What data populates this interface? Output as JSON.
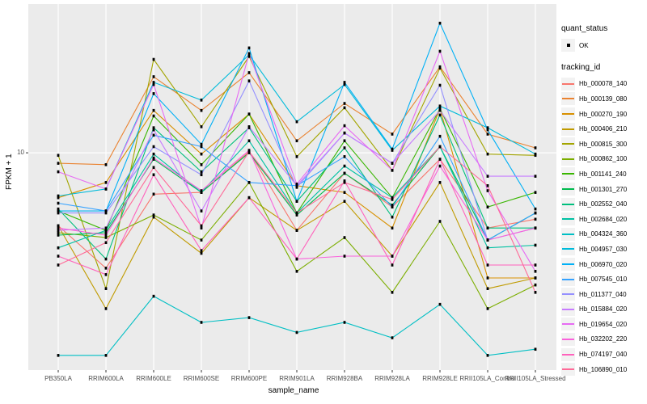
{
  "chart_data": {
    "type": "line",
    "title": "",
    "xlabel": "sample_name",
    "ylabel": "FPKM + 1",
    "yscale": "log10",
    "ytick_label": "10",
    "yticks": [
      10
    ],
    "ylim": [
      1.78,
      32.6
    ],
    "grid": "on",
    "legend_position": "right",
    "panel_bg": "#EBEBEB",
    "grid_color": "#FFFFFF",
    "point_color": "#000000",
    "categories": [
      "PB350LA",
      "RRIM600LA",
      "RRIM600LE",
      "RRIM600SE",
      "RRIM600PE",
      "RRIM901LA",
      "RRIM928BA",
      "RRIM928LA",
      "RRIM928LE",
      "RRII105LA_Control",
      "RRII105LA_Stressed"
    ],
    "series": [
      {
        "name": "Hb_000078_140",
        "color": "#F8766D",
        "values": [
          5.6,
          4.0,
          7.2,
          7.3,
          10.1,
          5.4,
          8.5,
          6.5,
          9.5,
          5.5,
          5.9
        ]
      },
      {
        "name": "Hb_000139_080",
        "color": "#EA8331",
        "values": [
          9.2,
          9.1,
          18.3,
          14.0,
          18.9,
          11.0,
          14.8,
          11.6,
          19.8,
          11.6,
          10.4
        ]
      },
      {
        "name": "Hb_000270_190",
        "color": "#D89000",
        "values": [
          7.0,
          7.9,
          14.0,
          9.9,
          13.6,
          7.7,
          7.3,
          5.5,
          14.2,
          3.7,
          3.7
        ]
      },
      {
        "name": "Hb_000406_210",
        "color": "#C09B00",
        "values": [
          5.6,
          2.9,
          6.0,
          4.5,
          7.0,
          5.4,
          6.8,
          4.4,
          7.9,
          3.4,
          3.7
        ]
      },
      {
        "name": "Hb_000815_300",
        "color": "#A3A500",
        "values": [
          9.8,
          3.4,
          21.0,
          12.3,
          21.5,
          9.7,
          14.3,
          8.7,
          19.6,
          9.9,
          9.8
        ]
      },
      {
        "name": "Hb_000862_100",
        "color": "#7CAE00",
        "values": [
          5.3,
          5.1,
          6.1,
          5.0,
          7.9,
          3.9,
          5.1,
          3.3,
          5.8,
          2.9,
          3.5
        ]
      },
      {
        "name": "Hb_001141_240",
        "color": "#39B600",
        "values": [
          6.3,
          5.4,
          13.4,
          9.1,
          13.6,
          6.2,
          11.0,
          7.0,
          14.2,
          6.5,
          7.3
        ]
      },
      {
        "name": "Hb_001301_270",
        "color": "#00BB4E",
        "values": [
          5.2,
          5.3,
          9.5,
          7.3,
          10.0,
          6.1,
          8.5,
          6.6,
          10.5,
          5.0,
          6.2
        ]
      },
      {
        "name": "Hb_002552_040",
        "color": "#00BF7D",
        "values": [
          6.4,
          4.3,
          12.2,
          8.6,
          12.2,
          6.8,
          10.4,
          6.0,
          13.5,
          5.5,
          5.5
        ]
      },
      {
        "name": "Hb_002684_020",
        "color": "#00C1A3",
        "values": [
          4.7,
          5.4,
          9.9,
          7.3,
          11.0,
          6.2,
          9.0,
          7.0,
          10.5,
          4.7,
          4.8
        ]
      },
      {
        "name": "Hb_004324_360",
        "color": "#00BFC4",
        "values": [
          2.0,
          2.0,
          3.2,
          2.6,
          2.7,
          2.4,
          2.6,
          2.3,
          3.0,
          2.0,
          2.1
        ]
      },
      {
        "name": "Hb_004957_030",
        "color": "#00BBDA",
        "values": [
          7.1,
          7.5,
          17.5,
          15.2,
          21.8,
          12.8,
          17.2,
          10.2,
          14.5,
          12.2,
          9.9
        ]
      },
      {
        "name": "Hb_006970_020",
        "color": "#00B0F6",
        "values": [
          6.3,
          6.3,
          16.0,
          10.7,
          23.0,
          6.8,
          17.5,
          10.3,
          28.0,
          12.0,
          6.4
        ]
      },
      {
        "name": "Hb_007545_010",
        "color": "#35A2FF",
        "values": [
          6.7,
          6.3,
          11.5,
          10.5,
          7.9,
          7.7,
          9.7,
          6.5,
          11.4,
          5.0,
          6.2
        ]
      },
      {
        "name": "Hb_011377_040",
        "color": "#9590FF",
        "values": [
          6.2,
          6.2,
          10.5,
          8.4,
          17.7,
          7.6,
          11.7,
          9.2,
          17.1,
          5.0,
          5.5
        ]
      },
      {
        "name": "Hb_015884_020",
        "color": "#C77CFF",
        "values": [
          5.4,
          5.5,
          12.0,
          6.3,
          12.3,
          7.7,
          11.7,
          9.2,
          14.0,
          8.3,
          8.3
        ]
      },
      {
        "name": "Hb_019654_020",
        "color": "#E76BF3",
        "values": [
          8.6,
          7.5,
          17.2,
          5.5,
          22.0,
          7.8,
          12.4,
          8.7,
          22.4,
          7.4,
          3.9
        ]
      },
      {
        "name": "Hb_032202_220",
        "color": "#FA62DB",
        "values": [
          5.5,
          5.2,
          9.6,
          7.4,
          10.2,
          4.3,
          4.4,
          4.4,
          9.0,
          5.0,
          5.5
        ]
      },
      {
        "name": "Hb_074197_040",
        "color": "#FF62BC",
        "values": [
          4.4,
          3.8,
          8.4,
          4.6,
          7.0,
          4.3,
          8.0,
          4.1,
          9.5,
          4.1,
          4.1
        ]
      },
      {
        "name": "Hb_106890_010",
        "color": "#FF6A98",
        "values": [
          4.1,
          4.9,
          8.9,
          5.6,
          10.1,
          6.2,
          7.9,
          6.9,
          10.5,
          7.7,
          3.3
        ]
      }
    ]
  },
  "legend": {
    "quant_status_title": "quant_status",
    "ok_label": "OK",
    "tracking_title": "tracking_id"
  }
}
